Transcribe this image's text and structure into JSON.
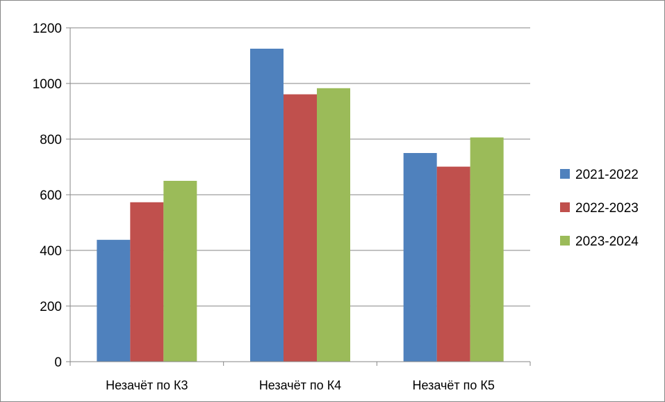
{
  "chart_data": {
    "type": "bar",
    "categories": [
      "Незачёт по К3",
      "Незачёт по К4",
      "Незачёт по К5"
    ],
    "series": [
      {
        "name": "2021-2022",
        "color": "#4f81bd",
        "values": [
          438,
          1125,
          750
        ]
      },
      {
        "name": "2022-2023",
        "color": "#c0504d",
        "values": [
          573,
          961,
          701
        ]
      },
      {
        "name": "2023-2024",
        "color": "#9bbb59",
        "values": [
          650,
          983,
          806
        ]
      }
    ],
    "ylim": [
      0,
      1200
    ],
    "yticks": [
      0,
      200,
      400,
      600,
      800,
      1000,
      1200
    ],
    "grid": true,
    "legend": "right"
  }
}
